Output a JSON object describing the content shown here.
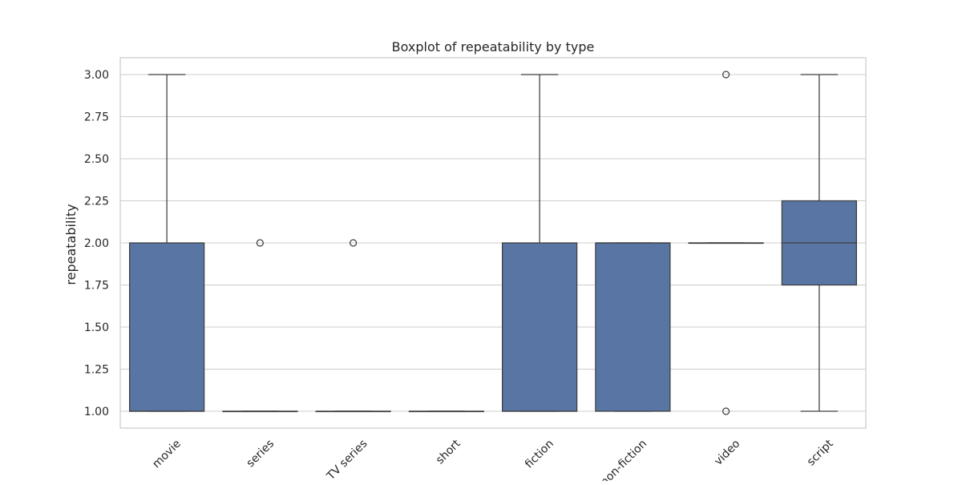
{
  "chart_data": {
    "type": "box",
    "title": "Boxplot of repeatability by type",
    "xlabel": "",
    "ylabel": "repeatability",
    "ylim": [
      0.9,
      3.1
    ],
    "yticks": [
      1.0,
      1.25,
      1.5,
      1.75,
      2.0,
      2.25,
      2.5,
      2.75,
      3.0
    ],
    "ytick_labels": [
      "1.00",
      "1.25",
      "1.50",
      "1.75",
      "2.00",
      "2.25",
      "2.50",
      "2.75",
      "3.00"
    ],
    "grid": true,
    "box_color": "#5875a4",
    "edge_color": "#3f3f3f",
    "grid_color": "#cccccc",
    "categories": [
      "movie",
      "series",
      "TV series",
      "short",
      "fiction",
      "non-fiction",
      "video",
      "script"
    ],
    "boxes": [
      {
        "whisker_low": 1.0,
        "q1": 1.0,
        "median": 1.0,
        "q3": 2.0,
        "whisker_high": 3.0,
        "outliers": []
      },
      {
        "whisker_low": 1.0,
        "q1": 1.0,
        "median": 1.0,
        "q3": 1.0,
        "whisker_high": 1.0,
        "outliers": [
          2.0
        ]
      },
      {
        "whisker_low": 1.0,
        "q1": 1.0,
        "median": 1.0,
        "q3": 1.0,
        "whisker_high": 1.0,
        "outliers": [
          2.0
        ]
      },
      {
        "whisker_low": 1.0,
        "q1": 1.0,
        "median": 1.0,
        "q3": 1.0,
        "whisker_high": 1.0,
        "outliers": []
      },
      {
        "whisker_low": 1.0,
        "q1": 1.0,
        "median": 1.0,
        "q3": 2.0,
        "whisker_high": 3.0,
        "outliers": []
      },
      {
        "whisker_low": 1.0,
        "q1": 1.0,
        "median": 2.0,
        "q3": 2.0,
        "whisker_high": 2.0,
        "outliers": []
      },
      {
        "whisker_low": 2.0,
        "q1": 2.0,
        "median": 2.0,
        "q3": 2.0,
        "whisker_high": 2.0,
        "outliers": [
          1.0,
          3.0
        ]
      },
      {
        "whisker_low": 1.0,
        "q1": 1.75,
        "median": 2.0,
        "q3": 2.25,
        "whisker_high": 3.0,
        "outliers": []
      }
    ]
  }
}
